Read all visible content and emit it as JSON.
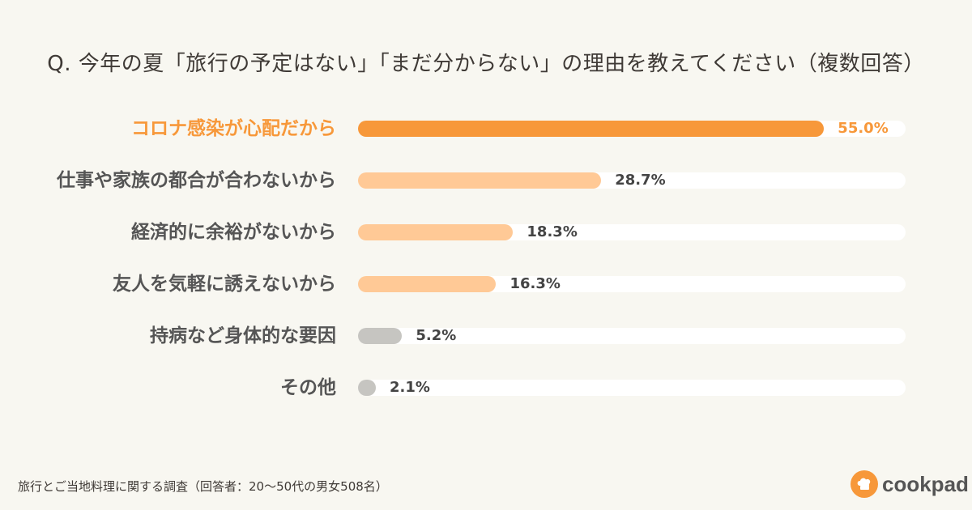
{
  "title": "Q. 今年の夏「旅行の予定はない」「まだ分からない」の理由を教えてください（複数回答）",
  "footnote": "旅行とご当地料理に関する調査（回答者：20〜50代の男女508名）",
  "brand": {
    "name": "cookpad",
    "icon": "chef-hat-icon"
  },
  "colors": {
    "background": "#f8f7f1",
    "highlight": "#f7983a",
    "light_orange": "#ffc996",
    "gray": "#c6c5c1",
    "track": "#ffffff"
  },
  "chart_data": {
    "type": "bar",
    "orientation": "horizontal",
    "categories": [
      "コロナ感染が心配だから",
      "仕事や家族の都合が合わないから",
      "経済的に余裕がないから",
      "友人を気軽に誘えないから",
      "持病など身体的な要因",
      "その他"
    ],
    "values": [
      55.0,
      28.7,
      18.3,
      16.3,
      5.2,
      2.1
    ],
    "value_labels": [
      "55.0%",
      "28.7%",
      "18.3%",
      "16.3%",
      "5.2%",
      "2.1%"
    ],
    "bar_colors": [
      "#f7983a",
      "#ffc996",
      "#ffc996",
      "#ffc996",
      "#c6c5c1",
      "#c6c5c1"
    ],
    "unit": "%",
    "xlim": [
      0,
      100
    ],
    "grid": false,
    "legend": "none"
  }
}
